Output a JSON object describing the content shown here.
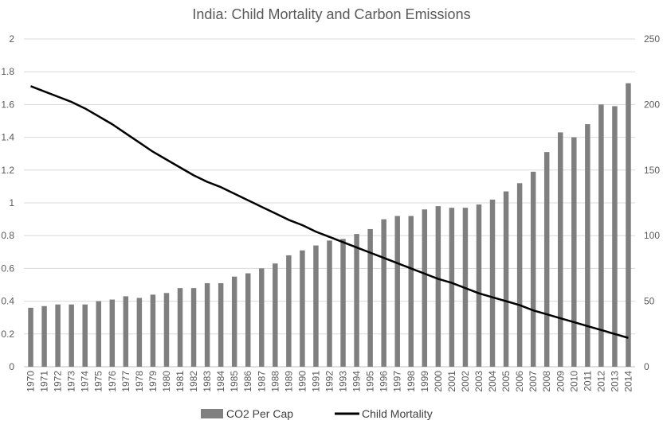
{
  "chart_data": {
    "type": "bar",
    "title": "India: Child Mortality and Carbon Emissions",
    "categories": [
      "1970",
      "1971",
      "1972",
      "1973",
      "1974",
      "1975",
      "1976",
      "1977",
      "1978",
      "1979",
      "1980",
      "1981",
      "1982",
      "1983",
      "1984",
      "1985",
      "1986",
      "1987",
      "1988",
      "1989",
      "1990",
      "1991",
      "1992",
      "1993",
      "1994",
      "1995",
      "1996",
      "1997",
      "1998",
      "1999",
      "2000",
      "2001",
      "2002",
      "2003",
      "2004",
      "2005",
      "2006",
      "2007",
      "2008",
      "2009",
      "2010",
      "2011",
      "2012",
      "2013",
      "2014"
    ],
    "y_left": {
      "min": 0,
      "max": 2,
      "step": 0.2,
      "ticks": [
        "0",
        "0.2",
        "0.4",
        "0.6",
        "0.8",
        "1",
        "1.2",
        "1.4",
        "1.6",
        "1.8",
        "2"
      ]
    },
    "y_right": {
      "min": 0,
      "max": 250,
      "step": 50,
      "ticks": [
        "0",
        "50",
        "100",
        "150",
        "200",
        "250"
      ]
    },
    "series": [
      {
        "name": "CO2 Per Cap",
        "kind": "bar",
        "axis": "left",
        "color": "#7f7f7f",
        "values": [
          0.36,
          0.37,
          0.38,
          0.38,
          0.38,
          0.4,
          0.41,
          0.43,
          0.42,
          0.44,
          0.45,
          0.48,
          0.48,
          0.51,
          0.51,
          0.55,
          0.57,
          0.6,
          0.63,
          0.68,
          0.71,
          0.74,
          0.77,
          0.78,
          0.81,
          0.84,
          0.9,
          0.92,
          0.92,
          0.96,
          0.98,
          0.97,
          0.97,
          0.99,
          1.02,
          1.07,
          1.12,
          1.19,
          1.31,
          1.43,
          1.4,
          1.48,
          1.6,
          1.59,
          1.73
        ]
      },
      {
        "name": "Child Mortality",
        "kind": "line",
        "axis": "right",
        "color": "#000000",
        "values": [
          214,
          210,
          206,
          202,
          197,
          191,
          185,
          178,
          171,
          164,
          158,
          152,
          146,
          141,
          137,
          132,
          127,
          122,
          117,
          112,
          108,
          103,
          99,
          95,
          91,
          87,
          83,
          79,
          75,
          71,
          67,
          64,
          60,
          56,
          53,
          50,
          47,
          43,
          40,
          37,
          34,
          31,
          28,
          25,
          22
        ]
      }
    ],
    "legend_position": "bottom",
    "grid": true
  }
}
